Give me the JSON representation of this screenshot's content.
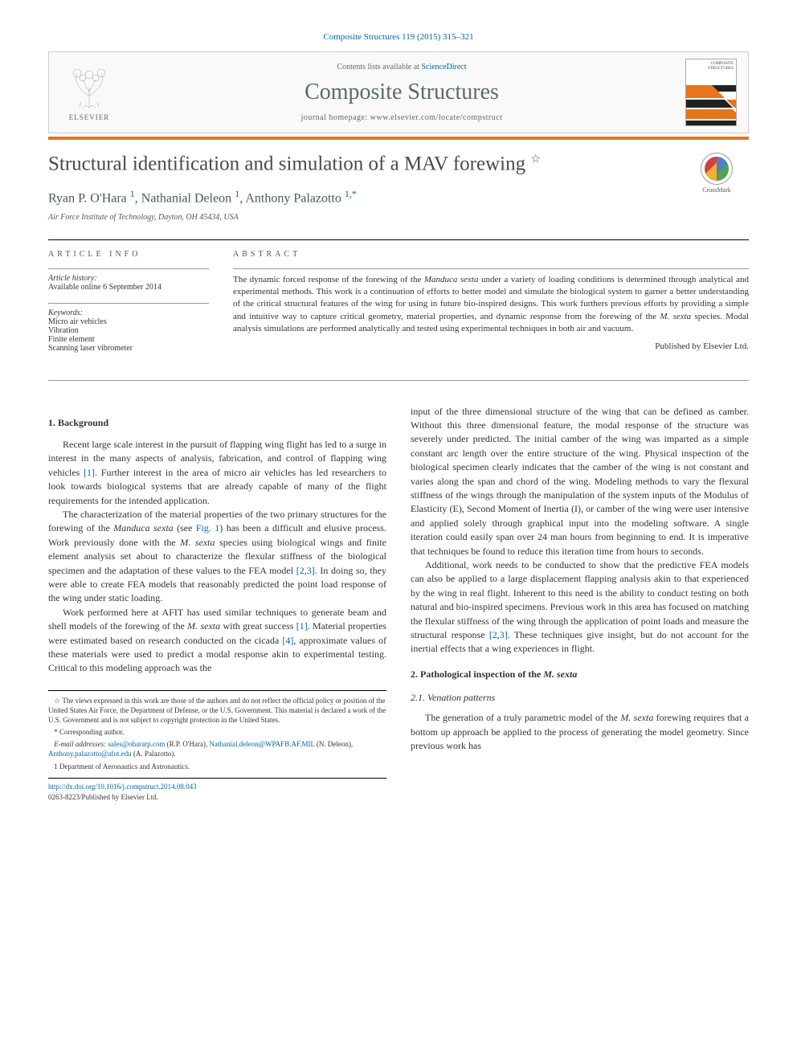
{
  "citation": "Composite Structures 119 (2015) 315–321",
  "header": {
    "contents_prefix": "Contents lists available at ",
    "contents_link": "ScienceDirect",
    "journal": "Composite Structures",
    "homepage_prefix": "journal homepage: ",
    "homepage": "www.elsevier.com/locate/compstruct",
    "publisher_name": "ELSEVIER",
    "cover_label_1": "COMPOSITE",
    "cover_label_2": "STRUCTURES"
  },
  "article": {
    "title": "Structural identification and simulation of a MAV forewing",
    "title_mark": "☆",
    "authors_html": "Ryan P. O'Hara <a>1</a>, Nathanial Deleon <a>1</a>, Anthony Palazotto <a>1,*</a>",
    "a1": "Ryan P. O'Hara",
    "a2": "Nathanial Deleon",
    "a3": "Anthony Palazotto",
    "sup1": "1",
    "sup2": "1",
    "sup3": "1,",
    "star": "*",
    "affiliation": "Air Force Institute of Technology, Dayton, OH 45434, USA",
    "crossmark": "CrossMark"
  },
  "info": {
    "heading": "ARTICLE INFO",
    "history_label": "Article history:",
    "history": "Available online 6 September 2014",
    "keywords_label": "Keywords:",
    "kw1": "Micro air vehicles",
    "kw2": "Vibration",
    "kw3": "Finite element",
    "kw4": "Scanning laser vibrometer"
  },
  "abstract": {
    "heading": "ABSTRACT",
    "text": "The dynamic forced response of the forewing of the Manduca sexta under a variety of loading conditions is determined through analytical and experimental methods. This work is a continuation of efforts to better model and simulate the biological system to garner a better understanding of the critical structural features of the wing for using in future bio-inspired designs. This work furthers previous efforts by providing a simple and intuitive way to capture critical geometry, material properties, and dynamic response from the forewing of the M. sexta species. Modal analysis simulations are performed analytically and tested using experimental techniques in both air and vacuum.",
    "publisher": "Published by Elsevier Ltd."
  },
  "body": {
    "s1_heading": "1. Background",
    "p1": "Recent large scale interest in the pursuit of flapping wing flight has led to a surge in interest in the many aspects of analysis, fabrication, and control of flapping wing vehicles [1]. Further interest in the area of micro air vehicles has led researchers to look towards biological systems that are already capable of many of the flight requirements for the intended application.",
    "p2": "The characterization of the material properties of the two primary structures for the forewing of the Manduca sexta (see Fig. 1) has been a difficult and elusive process. Work previously done with the M. sexta species using biological wings and finite element analysis set about to characterize the flexular stiffness of the biological specimen and the adaptation of these values to the FEA model [2,3]. In doing so, they were able to create FEA models that reasonably predicted the point load response of the wing under static loading.",
    "p3": "Work performed here at AFIT has used similar techniques to generate beam and shell models of the forewing of the M. sexta with great success [1]. Material properties were estimated based on research conducted on the cicada [4], approximate values of these materials were used to predict a modal response akin to experimental testing. Critical to this modeling approach was the",
    "p4": "input of the three dimensional structure of the wing that can be defined as camber. Without this three dimensional feature, the modal response of the structure was severely under predicted. The initial camber of the wing was imparted as a simple constant arc length over the entire structure of the wing. Physical inspection of the biological specimen clearly indicates that the camber of the wing is not constant and varies along the span and chord of the wing. Modeling methods to vary the flexural stiffness of the wings through the manipulation of the system inputs of the Modulus of Elasticity (E), Second Moment of Inertia (I), or camber of the wing were user intensive and applied solely through graphical input into the modeling software. A single iteration could easily span over 24 man hours from beginning to end. It is imperative that techniques be found to reduce this iteration time from hours to seconds.",
    "p5": "Additional, work needs to be conducted to show that the predictive FEA models can also be applied to a large displacement flapping analysis akin to that experienced by the wing in real flight. Inherent to this need is the ability to conduct testing on both natural and bio-inspired specimens. Previous work in this area has focused on matching the flexular stiffness of the wing through the application of point loads and measure the structural response [2,3]. These techniques give insight, but do not account for the inertial effects that a wing experiences in flight.",
    "s2_heading": "2. Pathological inspection of the M. sexta",
    "s21_heading": "2.1. Venation patterns",
    "p6": "The generation of a truly parametric model of the M. sexta forewing requires that a bottom up approach be applied to the process of generating the model geometry. Since previous work has"
  },
  "footnotes": {
    "fn_star": "☆  The views expressed in this work are those of the authors and do not reflect the official policy or position of the United States Air Force, the Department of Defense, or the U.S. Government. This material is declared a work of the U.S. Government and is not subject to copyright protection in the United States.",
    "fn_corr": "*  Corresponding author.",
    "email_label": "E-mail addresses: ",
    "email1": "sales@ohararp.com",
    "email1_who": " (R.P. O'Hara), ",
    "email2": "Nathanial.deleon@WPAFB.AF.MIL",
    "email2_who": " (N. Deleon), ",
    "email3": "Anthony.palazotto@afot.edu",
    "email3_who": " (A. Palazotto).",
    "fn_dept": "1  Department of Aeronautics and Astronautics."
  },
  "bottom": {
    "doi": "http://dx.doi.org/10.1016/j.compstruct.2014.08.043",
    "issn": "0263-8223/Published by Elsevier Ltd."
  },
  "colors": {
    "link": "#0066aa",
    "orange": "#e8751a",
    "heading_gray": "#5a6a6a",
    "text": "#333333"
  }
}
